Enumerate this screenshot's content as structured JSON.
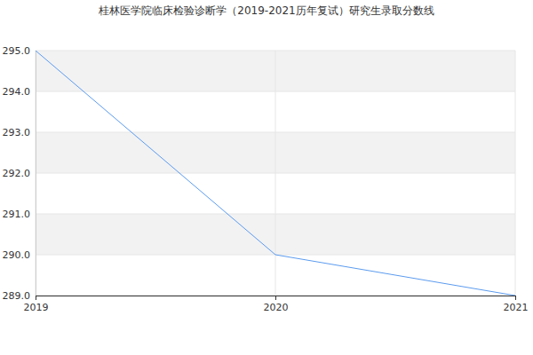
{
  "chart_data": {
    "type": "line",
    "title": "桂林医学院临床检验诊断学（2019-2021历年复试）研究生录取分数线",
    "x": [
      2019,
      2020,
      2021
    ],
    "values": [
      295,
      290,
      289
    ],
    "color": "#5b9bef",
    "xlim": [
      2019,
      2021
    ],
    "xticks": [
      2019,
      2020,
      2021
    ],
    "ylim": [
      289,
      295
    ],
    "yticks": [
      {
        "value": 289,
        "label": "289.0"
      },
      {
        "value": 290,
        "label": "290.0"
      },
      {
        "value": 291,
        "label": "291.0"
      },
      {
        "value": 292,
        "label": "292.0"
      },
      {
        "value": 293,
        "label": "293.0"
      },
      {
        "value": 294,
        "label": "294.0"
      },
      {
        "value": 295,
        "label": "295.0"
      }
    ],
    "grid": true
  }
}
